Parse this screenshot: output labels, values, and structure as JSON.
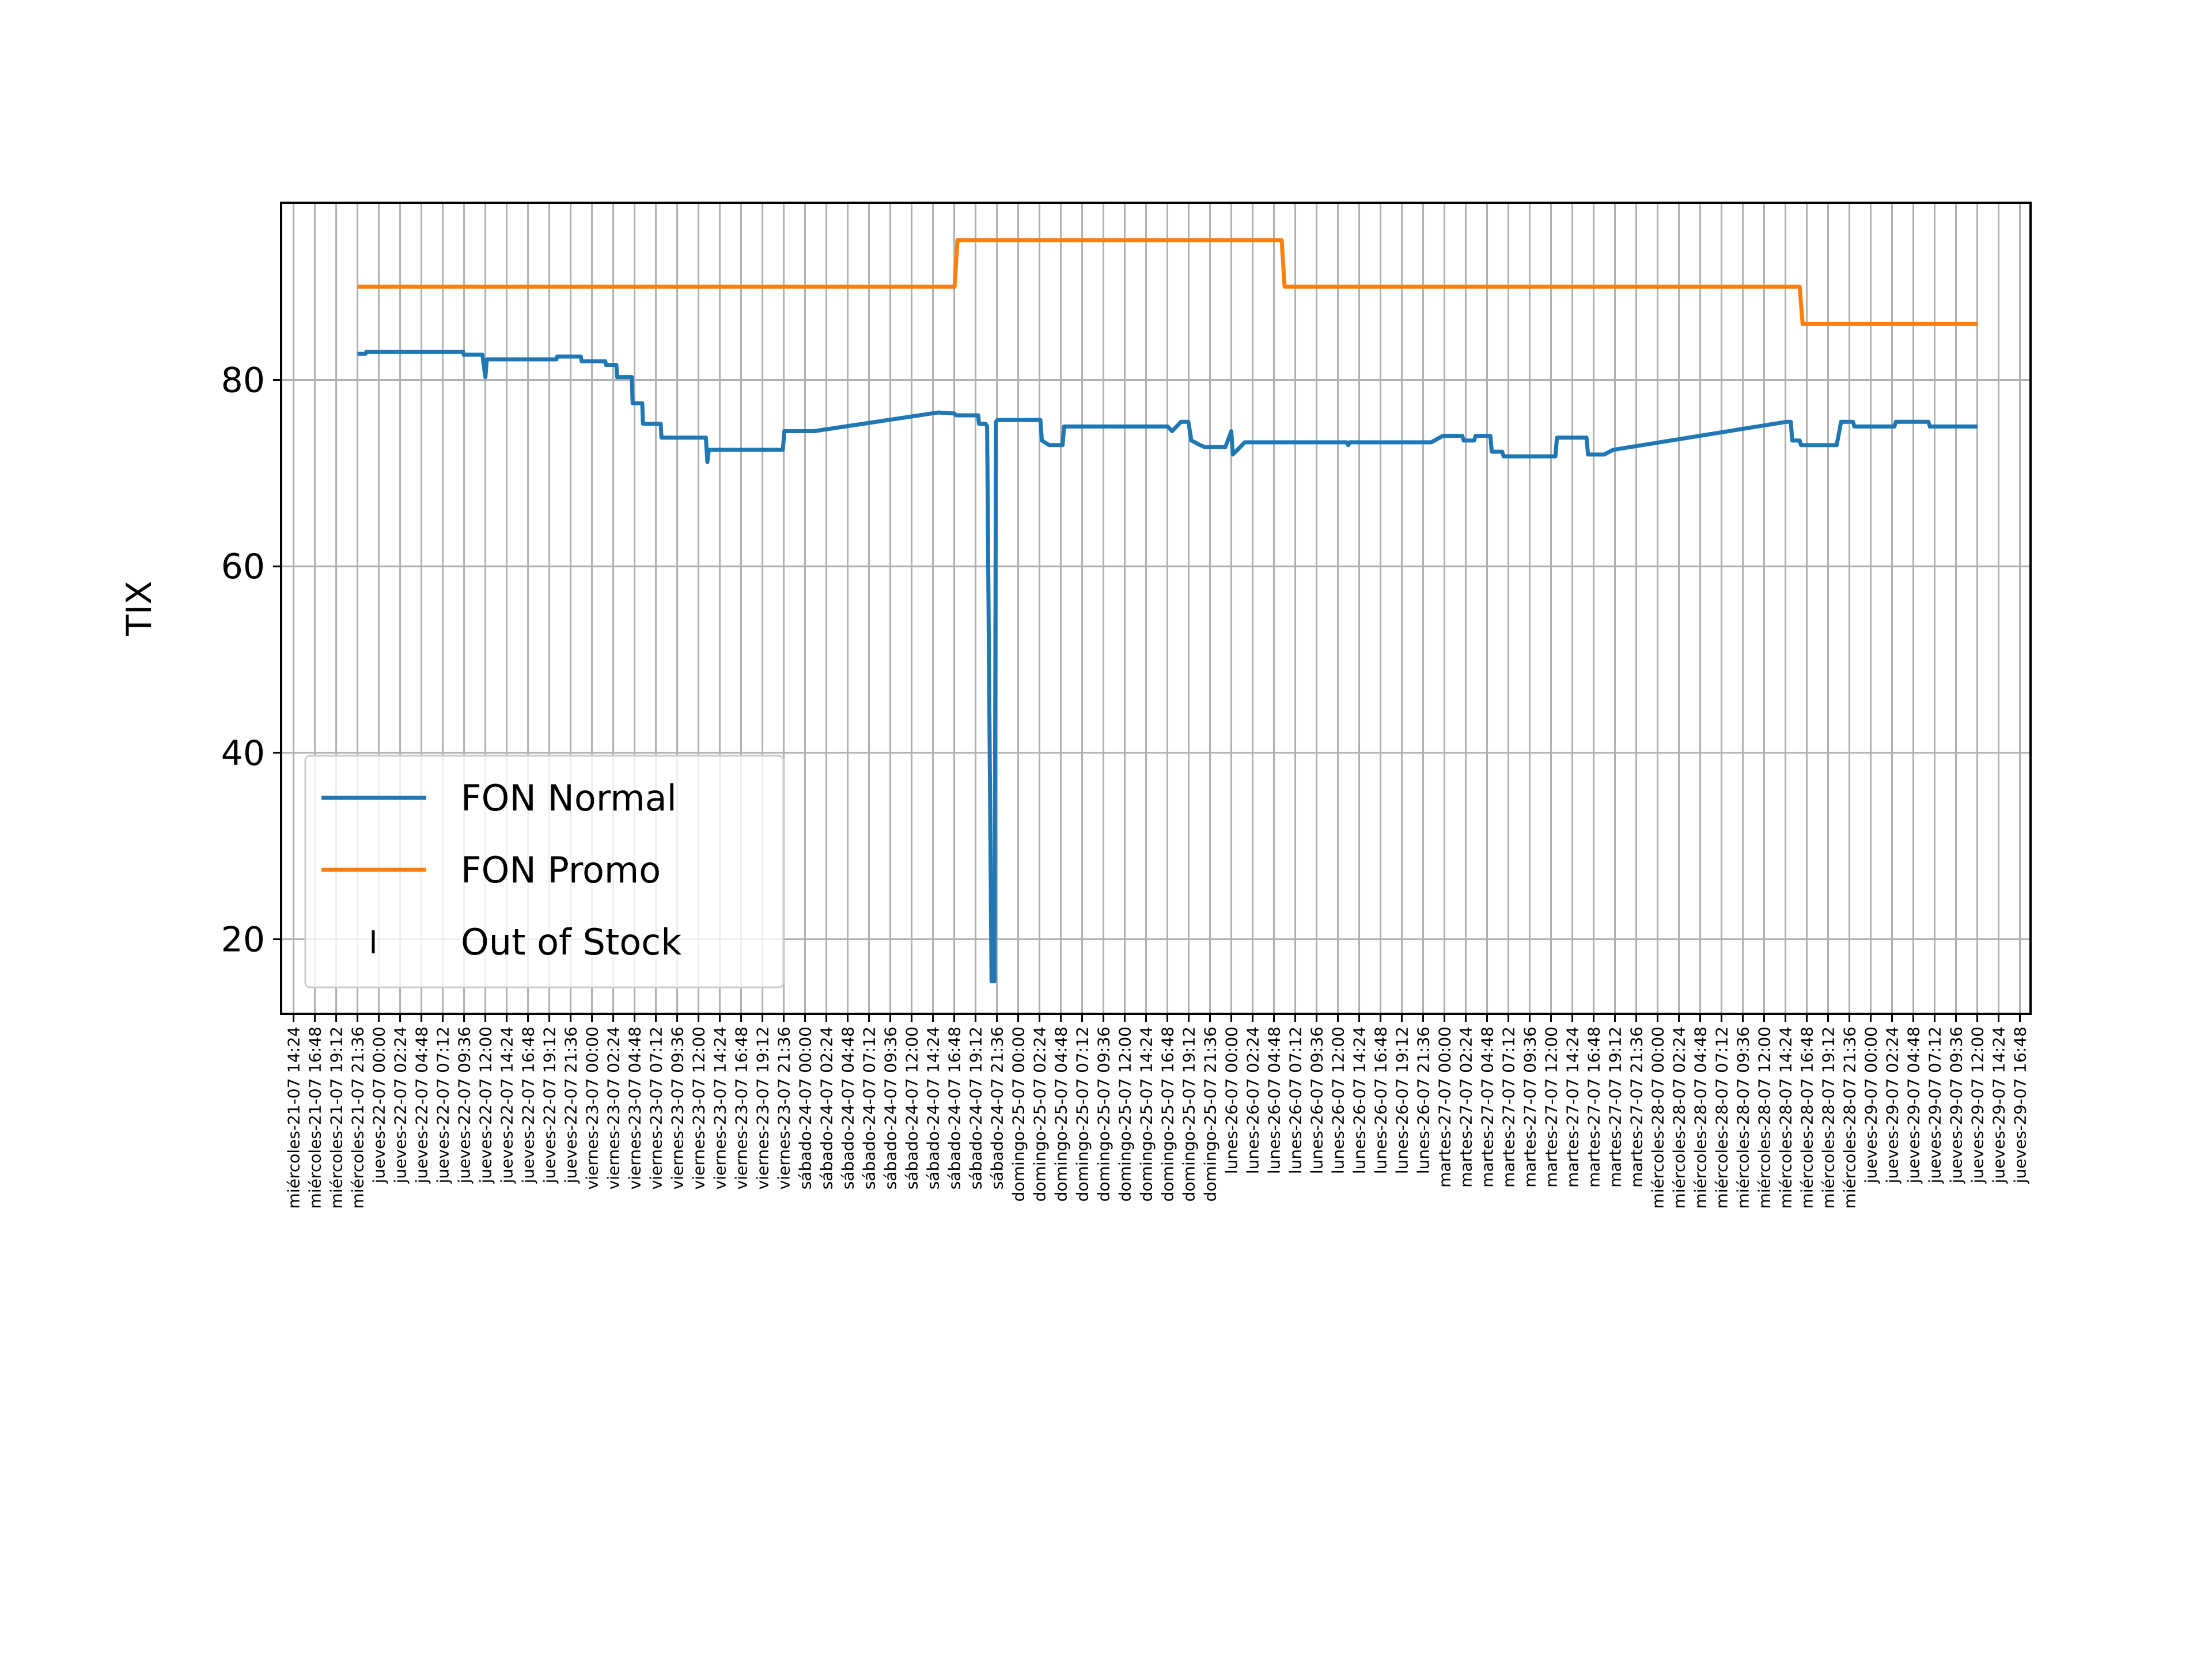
{
  "chart_data": {
    "type": "line",
    "ylabel": "TIX",
    "xlabel": "",
    "ylim": [
      12,
      99
    ],
    "yticks": [
      20,
      40,
      60,
      80
    ],
    "grid": true,
    "legend_placement": "lower-left",
    "x_ticks": [
      "miércoles-21-07 14:24",
      "miércoles-21-07 16:48",
      "miércoles-21-07 19:12",
      "miércoles-21-07 21:36",
      "jueves-22-07 00:00",
      "jueves-22-07 02:24",
      "jueves-22-07 04:48",
      "jueves-22-07 07:12",
      "jueves-22-07 09:36",
      "jueves-22-07 12:00",
      "jueves-22-07 14:24",
      "jueves-22-07 16:48",
      "jueves-22-07 19:12",
      "jueves-22-07 21:36",
      "viernes-23-07 00:00",
      "viernes-23-07 02:24",
      "viernes-23-07 04:48",
      "viernes-23-07 07:12",
      "viernes-23-07 09:36",
      "viernes-23-07 12:00",
      "viernes-23-07 14:24",
      "viernes-23-07 16:48",
      "viernes-23-07 19:12",
      "viernes-23-07 21:36",
      "sábado-24-07 00:00",
      "sábado-24-07 02:24",
      "sábado-24-07 04:48",
      "sábado-24-07 07:12",
      "sábado-24-07 09:36",
      "sábado-24-07 12:00",
      "sábado-24-07 14:24",
      "sábado-24-07 16:48",
      "sábado-24-07 19:12",
      "sábado-24-07 21:36",
      "domingo-25-07 00:00",
      "domingo-25-07 02:24",
      "domingo-25-07 04:48",
      "domingo-25-07 07:12",
      "domingo-25-07 09:36",
      "domingo-25-07 12:00",
      "domingo-25-07 14:24",
      "domingo-25-07 16:48",
      "domingo-25-07 19:12",
      "domingo-25-07 21:36",
      "lunes-26-07 00:00",
      "lunes-26-07 02:24",
      "lunes-26-07 04:48",
      "lunes-26-07 07:12",
      "lunes-26-07 09:36",
      "lunes-26-07 12:00",
      "lunes-26-07 14:24",
      "lunes-26-07 16:48",
      "lunes-26-07 19:12",
      "lunes-26-07 21:36",
      "martes-27-07 00:00",
      "martes-27-07 02:24",
      "martes-27-07 04:48",
      "martes-27-07 07:12",
      "martes-27-07 09:36",
      "martes-27-07 12:00",
      "martes-27-07 14:24",
      "martes-27-07 16:48",
      "martes-27-07 19:12",
      "martes-27-07 21:36",
      "miércoles-28-07 00:00",
      "miércoles-28-07 02:24",
      "miércoles-28-07 04:48",
      "miércoles-28-07 07:12",
      "miércoles-28-07 09:36",
      "miércoles-28-07 12:00",
      "miércoles-28-07 14:24",
      "miércoles-28-07 16:48",
      "miércoles-28-07 19:12",
      "miércoles-28-07 21:36",
      "jueves-29-07 00:00",
      "jueves-29-07 02:24",
      "jueves-29-07 04:48",
      "jueves-29-07 07:12",
      "jueves-29-07 09:36",
      "jueves-29-07 12:00",
      "jueves-29-07 14:24",
      "jueves-29-07 16:48"
    ],
    "x_range": [
      "2021-07-21 13:00",
      "2021-07-29 18:00"
    ],
    "series": [
      {
        "name": "FON Normal",
        "color": "#1f77b4",
        "points": [
          [
            "2021-07-21 21:36",
            82.8
          ],
          [
            "2021-07-21 22:30",
            82.8
          ],
          [
            "2021-07-21 22:35",
            83.0
          ],
          [
            "2021-07-22 09:30",
            83.0
          ],
          [
            "2021-07-22 09:35",
            82.7
          ],
          [
            "2021-07-22 11:40",
            82.7
          ],
          [
            "2021-07-22 12:00",
            80.3
          ],
          [
            "2021-07-22 12:10",
            82.2
          ],
          [
            "2021-07-22 20:00",
            82.2
          ],
          [
            "2021-07-22 20:05",
            82.5
          ],
          [
            "2021-07-22 22:45",
            82.5
          ],
          [
            "2021-07-22 22:50",
            82.0
          ],
          [
            "2021-07-23 01:30",
            82.0
          ],
          [
            "2021-07-23 01:35",
            81.6
          ],
          [
            "2021-07-23 02:45",
            81.6
          ],
          [
            "2021-07-23 02:50",
            80.3
          ],
          [
            "2021-07-23 04:30",
            80.3
          ],
          [
            "2021-07-23 04:35",
            77.5
          ],
          [
            "2021-07-23 05:40",
            77.5
          ],
          [
            "2021-07-23 05:45",
            75.3
          ],
          [
            "2021-07-23 07:45",
            75.3
          ],
          [
            "2021-07-23 07:50",
            73.8
          ],
          [
            "2021-07-23 12:50",
            73.8
          ],
          [
            "2021-07-23 13:00",
            71.2
          ],
          [
            "2021-07-23 13:10",
            72.5
          ],
          [
            "2021-07-23 21:30",
            72.5
          ],
          [
            "2021-07-23 21:40",
            74.5
          ],
          [
            "2021-07-24 01:00",
            74.5
          ],
          [
            "2021-07-24 15:00",
            76.5
          ],
          [
            "2021-07-24 16:48",
            76.4
          ],
          [
            "2021-07-24 17:00",
            76.2
          ],
          [
            "2021-07-24 19:30",
            76.2
          ],
          [
            "2021-07-24 19:35",
            75.3
          ],
          [
            "2021-07-24 20:20",
            75.3
          ],
          [
            "2021-07-24 20:30",
            75.0
          ],
          [
            "2021-07-24 21:00",
            15.5
          ],
          [
            "2021-07-24 21:20",
            15.5
          ],
          [
            "2021-07-24 21:30",
            75.5
          ],
          [
            "2021-07-24 21:40",
            75.7
          ],
          [
            "2021-07-25 02:30",
            75.7
          ],
          [
            "2021-07-25 02:40",
            73.5
          ],
          [
            "2021-07-25 03:30",
            73.0
          ],
          [
            "2021-07-25 05:00",
            73.0
          ],
          [
            "2021-07-25 05:10",
            75.0
          ],
          [
            "2021-07-25 16:50",
            75.0
          ],
          [
            "2021-07-25 17:20",
            74.5
          ],
          [
            "2021-07-25 18:20",
            75.5
          ],
          [
            "2021-07-25 19:10",
            75.5
          ],
          [
            "2021-07-25 19:30",
            73.5
          ],
          [
            "2021-07-25 20:30",
            73.0
          ],
          [
            "2021-07-25 21:00",
            72.8
          ],
          [
            "2021-07-25 23:20",
            72.8
          ],
          [
            "2021-07-26 00:00",
            74.5
          ],
          [
            "2021-07-26 00:10",
            72.0
          ],
          [
            "2021-07-26 01:00",
            72.8
          ],
          [
            "2021-07-26 01:30",
            73.3
          ],
          [
            "2021-07-26 13:00",
            73.3
          ],
          [
            "2021-07-26 13:10",
            73.0
          ],
          [
            "2021-07-26 13:20",
            73.3
          ],
          [
            "2021-07-26 22:30",
            73.3
          ],
          [
            "2021-07-26 23:50",
            74.0
          ],
          [
            "2021-07-27 02:00",
            74.0
          ],
          [
            "2021-07-27 02:10",
            73.5
          ],
          [
            "2021-07-27 03:20",
            73.5
          ],
          [
            "2021-07-27 03:30",
            74.0
          ],
          [
            "2021-07-27 05:10",
            74.0
          ],
          [
            "2021-07-27 05:20",
            72.3
          ],
          [
            "2021-07-27 06:30",
            72.3
          ],
          [
            "2021-07-27 06:40",
            71.8
          ],
          [
            "2021-07-27 12:30",
            71.8
          ],
          [
            "2021-07-27 12:40",
            73.8
          ],
          [
            "2021-07-27 16:00",
            73.8
          ],
          [
            "2021-07-27 16:10",
            72.0
          ],
          [
            "2021-07-27 18:00",
            72.0
          ],
          [
            "2021-07-27 19:00",
            72.5
          ],
          [
            "2021-07-28 14:30",
            75.5
          ],
          [
            "2021-07-28 15:00",
            75.5
          ],
          [
            "2021-07-28 15:10",
            73.5
          ],
          [
            "2021-07-28 16:00",
            73.5
          ],
          [
            "2021-07-28 16:10",
            73.0
          ],
          [
            "2021-07-28 20:10",
            73.0
          ],
          [
            "2021-07-28 20:40",
            75.5
          ],
          [
            "2021-07-28 22:00",
            75.5
          ],
          [
            "2021-07-28 22:10",
            75.0
          ],
          [
            "2021-07-29 02:40",
            75.0
          ],
          [
            "2021-07-29 02:50",
            75.5
          ],
          [
            "2021-07-29 06:30",
            75.5
          ],
          [
            "2021-07-29 06:40",
            75.0
          ],
          [
            "2021-07-29 12:00",
            75.0
          ]
        ]
      },
      {
        "name": "FON Promo",
        "color": "#ff7f0e",
        "points": [
          [
            "2021-07-21 21:36",
            90
          ],
          [
            "2021-07-24 16:50",
            90
          ],
          [
            "2021-07-24 17:10",
            95
          ],
          [
            "2021-07-26 05:40",
            95
          ],
          [
            "2021-07-26 06:00",
            90
          ],
          [
            "2021-07-28 16:00",
            90
          ],
          [
            "2021-07-28 16:20",
            86
          ],
          [
            "2021-07-29 12:00",
            86
          ]
        ]
      },
      {
        "name": "Out of Stock",
        "color": "#000000",
        "marker": "|",
        "points": []
      }
    ]
  }
}
